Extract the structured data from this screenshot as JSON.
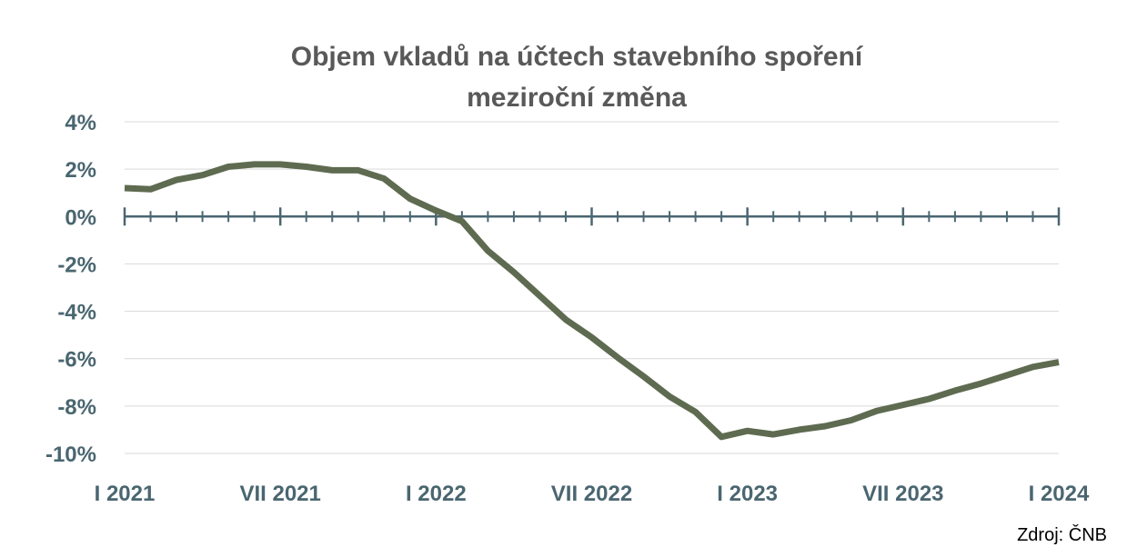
{
  "chart_data": {
    "type": "line",
    "title": "Objem vkladů na účtech stavebního spoření",
    "subtitle": "meziroční změna",
    "source": "Zdroj: ČNB",
    "xlabel": "",
    "ylabel": "",
    "ylim": [
      -10,
      4
    ],
    "y_ticks": [
      4,
      2,
      0,
      -2,
      -4,
      -6,
      -8,
      -10
    ],
    "y_tick_labels": [
      "4%",
      "2%",
      "0%",
      "-2%",
      "-4%",
      "-6%",
      "-8%",
      "-10%"
    ],
    "x_tick_labels": [
      "I 2021",
      "VII 2021",
      "I 2022",
      "VII 2022",
      "I 2023",
      "VII 2023",
      "I 2024"
    ],
    "x_labels_every": 6,
    "grid": true,
    "legend": "none",
    "colors": {
      "line": "#5e6b50",
      "axis": "#4a6670",
      "grid": "#d9d9d9",
      "title": "#595959",
      "tick_text": "#4a6670"
    },
    "series": [
      {
        "values": [
          1.2,
          1.15,
          1.55,
          1.75,
          2.1,
          2.2,
          2.2,
          2.1,
          1.95,
          1.95,
          1.6,
          0.75,
          0.25,
          -0.2,
          -1.45,
          -2.35,
          -3.35,
          -4.35,
          -5.1,
          -5.95,
          -6.75,
          -7.6,
          -8.25,
          -9.3,
          -9.05,
          -9.2,
          -9.0,
          -8.85,
          -8.6,
          -8.2,
          -7.95,
          -7.7,
          -7.35,
          -7.05,
          -6.7,
          -6.35,
          -6.15
        ]
      }
    ]
  }
}
